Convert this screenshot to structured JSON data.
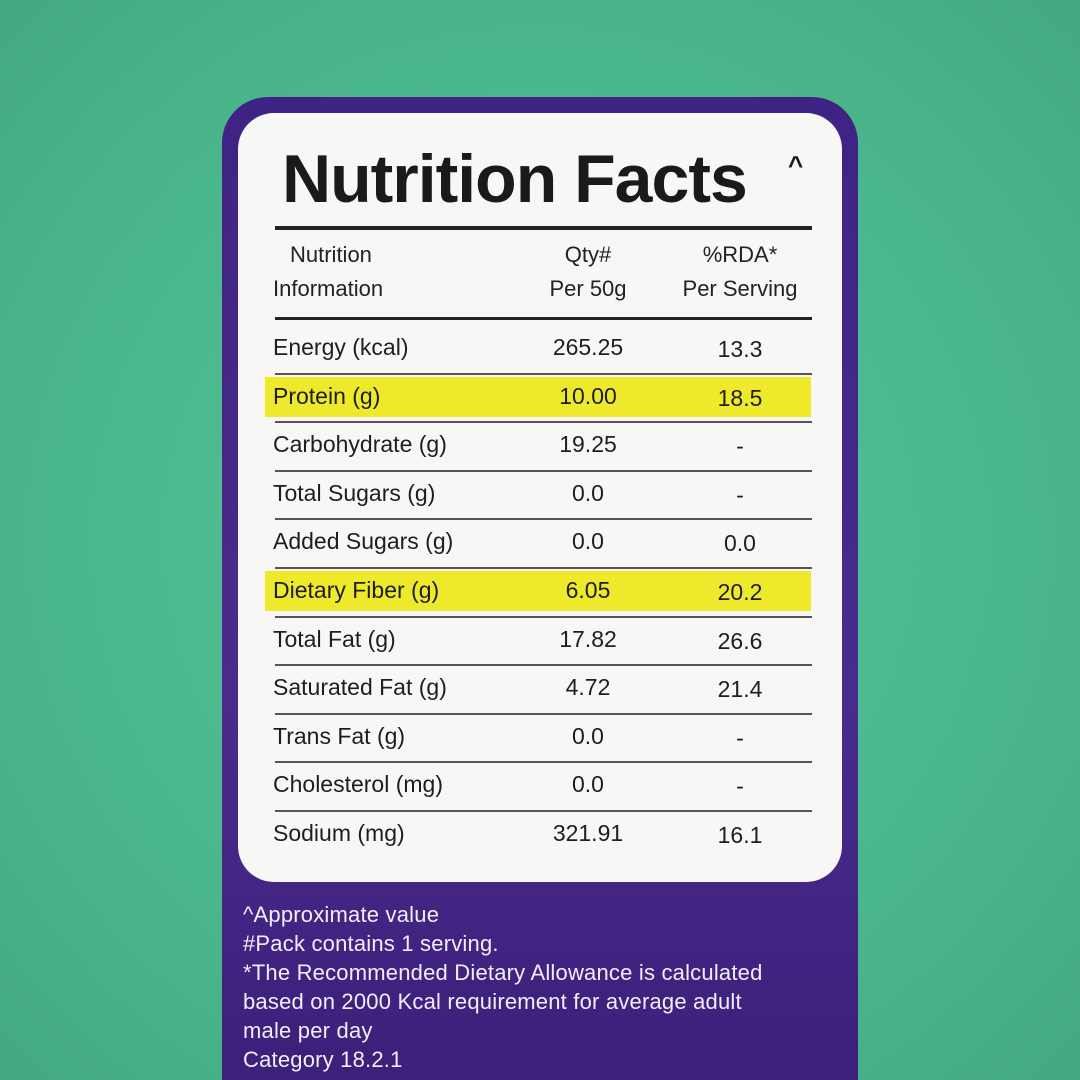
{
  "label": {
    "title": "Nutrition Facts",
    "title_mark": "^",
    "header": {
      "nutrient": [
        "Nutrition",
        "Information"
      ],
      "qty": [
        "Qty#",
        "Per 50g"
      ],
      "rda": [
        "%RDA*",
        "Per Serving"
      ]
    },
    "highlight_color": "#efe92c",
    "rows": [
      {
        "nutrient": "Energy (kcal)",
        "qty": "265.25",
        "rda": "13.3",
        "highlight": false
      },
      {
        "nutrient": "Protein (g)",
        "qty": "10.00",
        "rda": "18.5",
        "highlight": true
      },
      {
        "nutrient": "Carbohydrate (g)",
        "qty": "19.25",
        "rda": "-",
        "highlight": false
      },
      {
        "nutrient": "Total Sugars (g)",
        "qty": "0.0",
        "rda": "-",
        "highlight": false
      },
      {
        "nutrient": "Added Sugars (g)",
        "qty": "0.0",
        "rda": "0.0",
        "highlight": false
      },
      {
        "nutrient": "Dietary Fiber (g)",
        "qty": "6.05",
        "rda": "20.2",
        "highlight": true
      },
      {
        "nutrient": "Total Fat (g)",
        "qty": "17.82",
        "rda": "26.6",
        "highlight": false
      },
      {
        "nutrient": "Saturated Fat (g)",
        "qty": "4.72",
        "rda": "21.4",
        "highlight": false
      },
      {
        "nutrient": "Trans Fat (g)",
        "qty": "0.0",
        "rda": "-",
        "highlight": false
      },
      {
        "nutrient": "Cholesterol (mg)",
        "qty": "0.0",
        "rda": "-",
        "highlight": false
      },
      {
        "nutrient": "Sodium (mg)",
        "qty": "321.91",
        "rda": "16.1",
        "highlight": false
      }
    ],
    "footnotes": [
      "^Approximate value",
      "#Pack contains 1 serving.",
      "*The Recommended Dietary Allowance is calculated",
      "based on 2000 Kcal requirement for average adult",
      "male per day",
      "Category 18.2.1"
    ]
  }
}
